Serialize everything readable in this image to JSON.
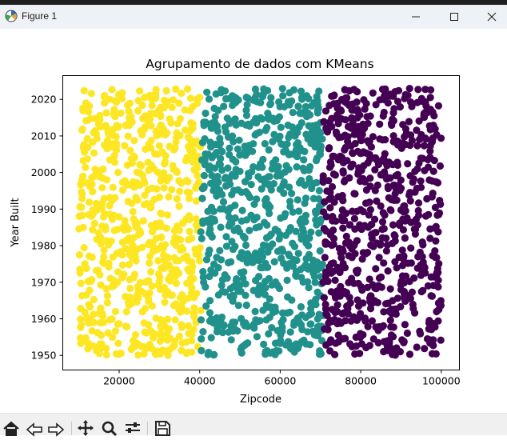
{
  "window": {
    "title": "Figure 1",
    "controls": [
      "minimize",
      "maximize",
      "close"
    ]
  },
  "toolbar": {
    "buttons": [
      {
        "name": "home",
        "icon": "home-icon"
      },
      {
        "name": "back",
        "icon": "arrow-left-icon"
      },
      {
        "name": "forward",
        "icon": "arrow-right-icon"
      },
      {
        "name": "pan",
        "icon": "move-icon"
      },
      {
        "name": "zoom",
        "icon": "magnifier-icon"
      },
      {
        "name": "configure-subplots",
        "icon": "sliders-icon"
      },
      {
        "name": "save",
        "icon": "floppy-disk-icon"
      }
    ]
  },
  "chart_data": {
    "type": "scatter",
    "title": "Agrupamento de dados com KMeans",
    "xlabel": "Zipcode",
    "ylabel": "Year Built",
    "xlim": [
      6000,
      104500
    ],
    "ylim": [
      1946,
      2026.5
    ],
    "xticks": [
      20000,
      40000,
      60000,
      80000,
      100000
    ],
    "yticks": [
      1950,
      1960,
      1970,
      1980,
      1990,
      2000,
      2010,
      2020
    ],
    "grid": false,
    "legend": "none",
    "series": [
      {
        "cluster": 0,
        "color": "#fde725",
        "x_range": [
          10000,
          40300
        ],
        "y_range": [
          1950,
          2023
        ],
        "approx_points": 700
      },
      {
        "cluster": 1,
        "color": "#21918c",
        "x_range": [
          40300,
          70600
        ],
        "y_range": [
          1950,
          2023
        ],
        "approx_points": 700
      },
      {
        "cluster": 2,
        "color": "#440154",
        "x_range": [
          70600,
          100000
        ],
        "y_range": [
          1950,
          2023
        ],
        "approx_points": 680
      }
    ]
  }
}
